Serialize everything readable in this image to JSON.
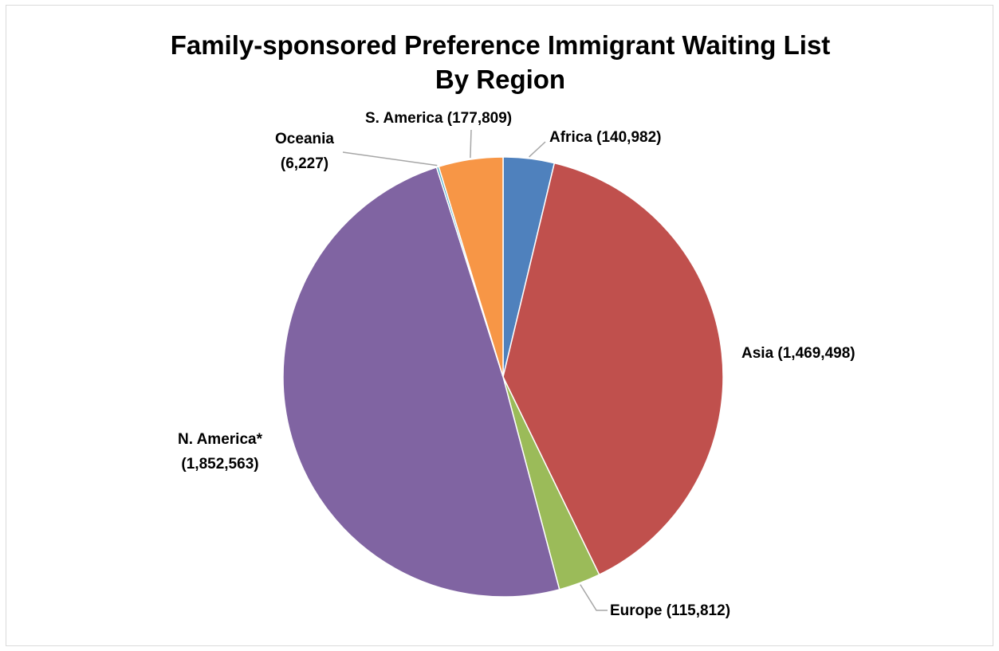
{
  "chart_data": {
    "type": "pie",
    "title_line1": "Family-sponsored Preference Immigrant Waiting List",
    "title_line2": "By Region",
    "slices": [
      {
        "name": "Africa",
        "value": 140982,
        "color": "#4f81bd",
        "label": "Africa (140,982)"
      },
      {
        "name": "Asia",
        "value": 1469498,
        "color": "#c0504d",
        "label": "Asia (1,469,498)"
      },
      {
        "name": "Europe",
        "value": 115812,
        "color": "#9bbb59",
        "label": "Europe (115,812)"
      },
      {
        "name": "N. America*",
        "value": 1852563,
        "color": "#8064a2",
        "label_line1": "N. America*",
        "label_line2": "(1,852,563)"
      },
      {
        "name": "Oceania",
        "value": 6227,
        "color": "#4bacc6",
        "label_line1": "Oceania",
        "label_line2": "(6,227)"
      },
      {
        "name": "S. America",
        "value": 177809,
        "color": "#f79646",
        "label": "S. America (177,809)"
      }
    ]
  }
}
